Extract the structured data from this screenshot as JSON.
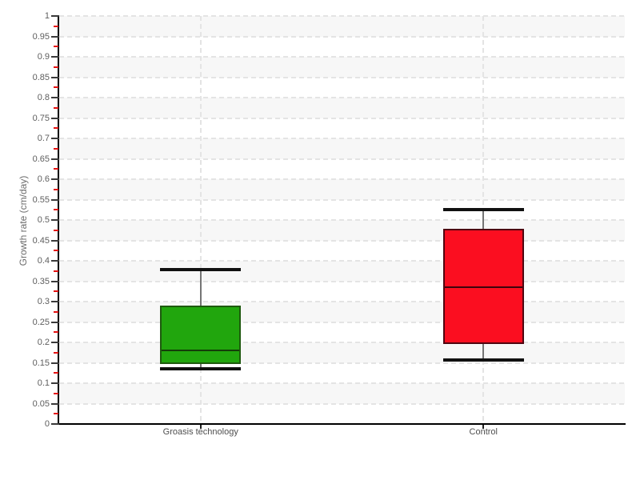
{
  "chart_data": {
    "type": "boxplot",
    "title": "",
    "xlabel": "",
    "ylabel": "Growth rate (cm/day)",
    "ylim": [
      0,
      1
    ],
    "ytick_step": 0.05,
    "yticks": [
      "0",
      "0.05",
      "0.1",
      "0.15",
      "0.2",
      "0.25",
      "0.3",
      "0.35",
      "0.4",
      "0.45",
      "0.5",
      "0.55",
      "0.6",
      "0.65",
      "0.7",
      "0.75",
      "0.8",
      "0.85",
      "0.9",
      "0.95",
      "1"
    ],
    "categories": [
      "Groasis technology",
      "Control"
    ],
    "series": [
      {
        "name": "Groasis technology",
        "min": 0.135,
        "q1": 0.147,
        "median": 0.181,
        "q3": 0.29,
        "max": 0.378,
        "fill": "#21a60d",
        "border": "#1e5a0e",
        "median_color": "#143d09"
      },
      {
        "name": "Control",
        "min": 0.156,
        "q1": 0.196,
        "median": 0.335,
        "q3": 0.478,
        "max": 0.525,
        "fill": "#fb0e20",
        "border": "#4f0510",
        "median_color": "#3d040c"
      }
    ],
    "legend": "none",
    "grid": {
      "horizontal_dashed": true,
      "vertical_dashed_at_categories": true,
      "alternating_bands": true,
      "minor_ticks_red": true
    },
    "colors": {
      "band": "#f7f7f7",
      "gridline": "#e4e4e4",
      "axis": "#000000",
      "tick_label": "#5e5e5e",
      "category_label": "#4f4f4f",
      "minor_tick": "#e31212",
      "whisker_stem": "#757575",
      "whisker_cap": "#111111"
    }
  }
}
